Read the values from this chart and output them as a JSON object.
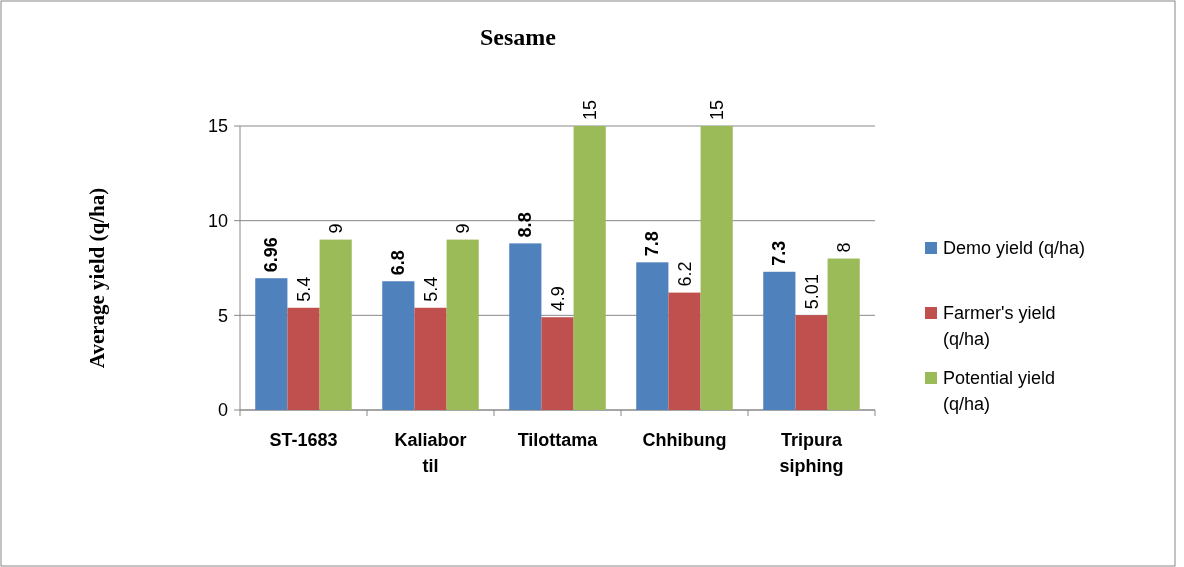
{
  "chart_data": {
    "type": "bar",
    "title": "Sesame",
    "ylabel": "Average yield (q/ha)",
    "categories": [
      "ST-1683",
      "Kaliabor til",
      "Tilottama",
      "Chhibung",
      "Tripura siphing"
    ],
    "series": [
      {
        "name": "Demo yield (q/ha)",
        "color": "#4f81bd",
        "values": [
          6.96,
          6.8,
          8.8,
          7.8,
          7.3
        ],
        "value_labels": [
          "6.96",
          "6.8",
          "8.8",
          "7.8",
          "7.3"
        ]
      },
      {
        "name": "Farmer's yield (q/ha)",
        "color": "#c0504d",
        "values": [
          5.4,
          5.4,
          4.9,
          6.2,
          5.01
        ],
        "value_labels": [
          "5.4",
          "5.4",
          "4.9",
          "6.2",
          "5.01"
        ]
      },
      {
        "name": "Potential yield (q/ha)",
        "color": "#9bbb59",
        "values": [
          9,
          9,
          15,
          15,
          8
        ],
        "value_labels": [
          "9",
          "9",
          "15",
          "15",
          "8"
        ]
      }
    ],
    "ylim": [
      0,
      15
    ],
    "yticks": [
      0,
      5,
      10,
      15
    ],
    "grid": "y",
    "legend": "right"
  }
}
